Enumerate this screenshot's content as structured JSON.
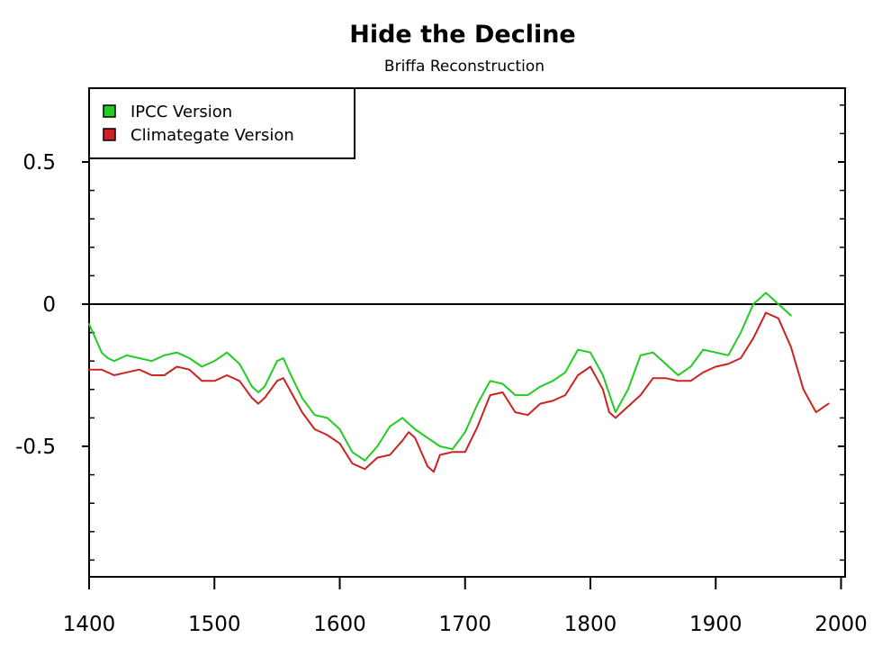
{
  "chart_data": {
    "type": "line",
    "title": "Hide the Decline",
    "subtitle": "Briffa Reconstruction",
    "xlabel": "",
    "ylabel": "",
    "xlim": [
      1400,
      2005
    ],
    "ylim": [
      -0.95,
      0.76
    ],
    "x_ticks": [
      1400,
      1500,
      1600,
      1700,
      1800,
      1900,
      2000
    ],
    "x_tick_labels": [
      "1400",
      "1500",
      "1600",
      "1700",
      "1800",
      "1900",
      "2000"
    ],
    "y_ticks": [
      0.5,
      0,
      -0.5
    ],
    "y_tick_labels": [
      "0.5",
      "0",
      "-0.5"
    ],
    "zero_line": 0,
    "grid": false,
    "legend_position": "top-left",
    "series": [
      {
        "name": "IPCC Version",
        "color": "#22cc22",
        "x": [
          1400,
          1405,
          1410,
          1415,
          1420,
          1430,
          1440,
          1450,
          1460,
          1470,
          1480,
          1490,
          1500,
          1510,
          1520,
          1530,
          1535,
          1540,
          1550,
          1555,
          1560,
          1570,
          1580,
          1590,
          1600,
          1610,
          1620,
          1630,
          1640,
          1650,
          1660,
          1670,
          1680,
          1690,
          1700,
          1710,
          1720,
          1730,
          1740,
          1750,
          1760,
          1770,
          1780,
          1790,
          1800,
          1810,
          1820,
          1830,
          1840,
          1850,
          1860,
          1870,
          1880,
          1890,
          1900,
          1910,
          1920,
          1930,
          1940,
          1950,
          1960
        ],
        "values": [
          -0.07,
          -0.12,
          -0.17,
          -0.19,
          -0.2,
          -0.18,
          -0.19,
          -0.2,
          -0.18,
          -0.17,
          -0.19,
          -0.22,
          -0.2,
          -0.17,
          -0.21,
          -0.29,
          -0.31,
          -0.29,
          -0.2,
          -0.19,
          -0.24,
          -0.33,
          -0.39,
          -0.4,
          -0.44,
          -0.52,
          -0.55,
          -0.5,
          -0.43,
          -0.4,
          -0.44,
          -0.47,
          -0.5,
          -0.51,
          -0.45,
          -0.35,
          -0.27,
          -0.28,
          -0.32,
          -0.32,
          -0.29,
          -0.27,
          -0.24,
          -0.16,
          -0.17,
          -0.25,
          -0.38,
          -0.3,
          -0.18,
          -0.17,
          -0.21,
          -0.25,
          -0.22,
          -0.16,
          -0.17,
          -0.18,
          -0.1,
          0.0,
          0.04,
          0.0,
          -0.04
        ]
      },
      {
        "name": "Climategate Version",
        "color": "#cc2222",
        "x": [
          1400,
          1410,
          1420,
          1430,
          1440,
          1450,
          1460,
          1470,
          1480,
          1490,
          1500,
          1510,
          1520,
          1530,
          1535,
          1540,
          1550,
          1555,
          1560,
          1570,
          1580,
          1590,
          1600,
          1610,
          1620,
          1630,
          1640,
          1650,
          1655,
          1660,
          1670,
          1675,
          1680,
          1690,
          1700,
          1710,
          1720,
          1730,
          1740,
          1750,
          1760,
          1770,
          1780,
          1790,
          1800,
          1810,
          1815,
          1820,
          1830,
          1840,
          1850,
          1860,
          1870,
          1880,
          1890,
          1900,
          1910,
          1920,
          1930,
          1940,
          1950,
          1960,
          1970,
          1980,
          1990
        ],
        "values": [
          -0.23,
          -0.23,
          -0.25,
          -0.24,
          -0.23,
          -0.25,
          -0.25,
          -0.22,
          -0.23,
          -0.27,
          -0.27,
          -0.25,
          -0.27,
          -0.33,
          -0.35,
          -0.33,
          -0.27,
          -0.26,
          -0.3,
          -0.38,
          -0.44,
          -0.46,
          -0.49,
          -0.56,
          -0.58,
          -0.54,
          -0.53,
          -0.48,
          -0.45,
          -0.47,
          -0.57,
          -0.59,
          -0.53,
          -0.52,
          -0.52,
          -0.43,
          -0.32,
          -0.31,
          -0.38,
          -0.39,
          -0.35,
          -0.34,
          -0.32,
          -0.25,
          -0.22,
          -0.3,
          -0.38,
          -0.4,
          -0.36,
          -0.32,
          -0.26,
          -0.26,
          -0.27,
          -0.27,
          -0.24,
          -0.22,
          -0.21,
          -0.19,
          -0.12,
          -0.03,
          -0.05,
          -0.15,
          -0.3,
          -0.38,
          -0.35
        ]
      }
    ]
  }
}
